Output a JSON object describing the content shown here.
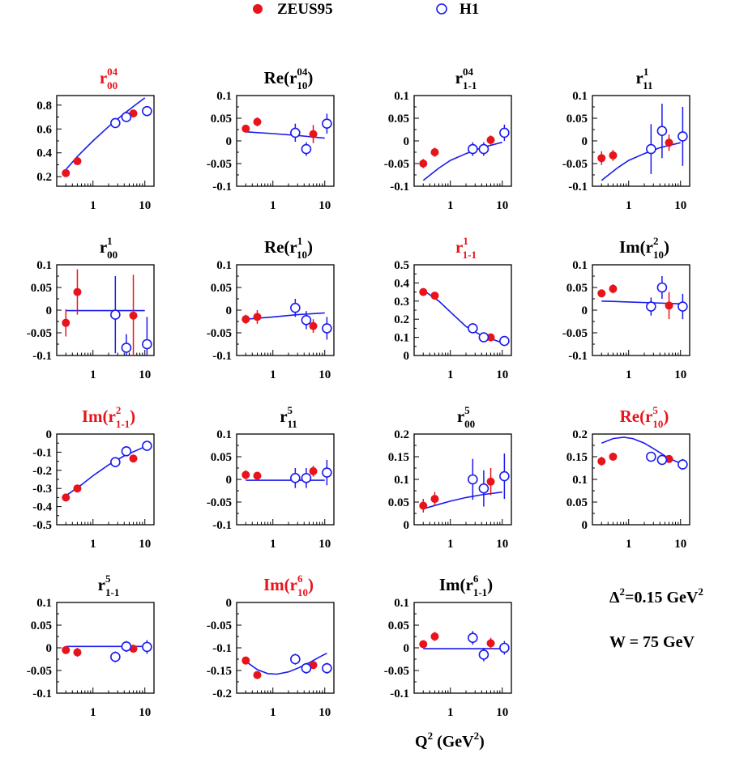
{
  "legend": [
    {
      "name": "ZEUS95",
      "marker": "filled-circle",
      "color": "#e8141c"
    },
    {
      "name": "H1",
      "marker": "open-circle",
      "color": "#1a1aee"
    }
  ],
  "annotations": {
    "delta_sq": {
      "base": "Δ",
      "sup": "2",
      "rest": "=0.15 GeV",
      "sup2": "2"
    },
    "w": "W = 75 GeV"
  },
  "x_axis_label": {
    "base": "Q",
    "sup": "2",
    "rest": " (GeV",
    "sup2": "2",
    "close": ")"
  },
  "colors": {
    "zeus": "#e8141c",
    "h1": "#1a1aee",
    "curve": "#1a1aee",
    "red_title": "#e8141c"
  },
  "x_ticks": [
    "1",
    "10"
  ],
  "chart_data": [
    {
      "type": "scatter",
      "title": {
        "pre": "r",
        "sup": "04",
        "sub": "00",
        "post": ""
      },
      "title_color": "red",
      "xlog": true,
      "xlim": [
        0.2,
        15
      ],
      "ylim": [
        0.12,
        0.88
      ],
      "yticks": [
        "0.2",
        "0.4",
        "0.6",
        "0.8"
      ],
      "zeus": [
        {
          "x": 0.3,
          "y": 0.23,
          "err": 0.0
        },
        {
          "x": 0.5,
          "y": 0.33,
          "err": 0.0
        },
        {
          "x": 6,
          "y": 0.73,
          "err": 0.0
        }
      ],
      "h1": [
        {
          "x": 2.7,
          "y": 0.65,
          "err": 0.02
        },
        {
          "x": 4.4,
          "y": 0.7,
          "err": 0.02
        },
        {
          "x": 11,
          "y": 0.75,
          "err": 0.03
        }
      ],
      "curve": {
        "x": [
          0.3,
          0.5,
          1,
          2,
          4,
          7,
          10
        ],
        "y": [
          0.26,
          0.37,
          0.5,
          0.62,
          0.73,
          0.81,
          0.86
        ]
      }
    },
    {
      "type": "scatter",
      "title": {
        "pre": "Re(r",
        "sup": "04",
        "sub": "10",
        "post": ")"
      },
      "title_color": "black",
      "xlog": true,
      "xlim": [
        0.2,
        15
      ],
      "ylim": [
        -0.1,
        0.1
      ],
      "yticks": [
        "0.1",
        "0.05",
        "0",
        "-0.05",
        "-0.1"
      ],
      "zeus": [
        {
          "x": 0.3,
          "y": 0.027,
          "err": 0.007
        },
        {
          "x": 0.5,
          "y": 0.042,
          "err": 0.01
        },
        {
          "x": 6,
          "y": 0.015,
          "err": 0.02
        }
      ],
      "h1": [
        {
          "x": 2.7,
          "y": 0.018,
          "err": 0.02
        },
        {
          "x": 4.4,
          "y": -0.018,
          "err": 0.015
        },
        {
          "x": 11,
          "y": 0.038,
          "err": 0.022
        }
      ],
      "curve": {
        "x": [
          0.3,
          1,
          3,
          10
        ],
        "y": [
          0.02,
          0.016,
          0.012,
          0.006
        ]
      }
    },
    {
      "type": "scatter",
      "title": {
        "pre": "r",
        "sup": "04",
        "sub": "1-1",
        "post": ""
      },
      "title_color": "black",
      "xlog": true,
      "xlim": [
        0.2,
        15
      ],
      "ylim": [
        -0.1,
        0.1
      ],
      "yticks": [
        "0.1",
        "0.05",
        "0",
        "-0.05",
        "-0.1"
      ],
      "zeus": [
        {
          "x": 0.3,
          "y": -0.05,
          "err": 0.01
        },
        {
          "x": 0.5,
          "y": -0.025,
          "err": 0.01
        },
        {
          "x": 6,
          "y": 0.002,
          "err": 0.01
        }
      ],
      "h1": [
        {
          "x": 2.7,
          "y": -0.018,
          "err": 0.015
        },
        {
          "x": 4.4,
          "y": -0.018,
          "err": 0.015
        },
        {
          "x": 11,
          "y": 0.018,
          "err": 0.018
        }
      ],
      "curve": {
        "x": [
          0.3,
          0.6,
          1,
          2,
          4,
          10
        ],
        "y": [
          -0.087,
          -0.06,
          -0.043,
          -0.028,
          -0.015,
          -0.003
        ]
      }
    },
    {
      "type": "scatter",
      "title": {
        "pre": "r",
        "sup": "1",
        "sub": "11",
        "post": ""
      },
      "title_color": "black",
      "xlog": true,
      "xlim": [
        0.2,
        15
      ],
      "ylim": [
        -0.1,
        0.1
      ],
      "yticks": [
        "0.1",
        "0.05",
        "0",
        "-0.05",
        "-0.1"
      ],
      "zeus": [
        {
          "x": 0.3,
          "y": -0.038,
          "err": 0.015
        },
        {
          "x": 0.5,
          "y": -0.032,
          "err": 0.012
        },
        {
          "x": 6,
          "y": -0.004,
          "err": 0.018
        }
      ],
      "h1": [
        {
          "x": 2.7,
          "y": -0.018,
          "err": 0.055
        },
        {
          "x": 4.4,
          "y": 0.022,
          "err": 0.06
        },
        {
          "x": 11,
          "y": 0.01,
          "err": 0.065
        }
      ],
      "curve": {
        "x": [
          0.3,
          0.6,
          1,
          2,
          4,
          10
        ],
        "y": [
          -0.087,
          -0.06,
          -0.043,
          -0.028,
          -0.015,
          -0.004
        ]
      }
    },
    {
      "type": "scatter",
      "title": {
        "pre": "r",
        "sup": "1",
        "sub": "00",
        "post": ""
      },
      "title_color": "black",
      "xlog": true,
      "xlim": [
        0.2,
        15
      ],
      "ylim": [
        -0.1,
        0.1
      ],
      "yticks": [
        "0.1",
        "0.05",
        "0",
        "-0.05",
        "-0.1"
      ],
      "zeus": [
        {
          "x": 0.3,
          "y": -0.028,
          "err": 0.03
        },
        {
          "x": 0.5,
          "y": 0.04,
          "err": 0.05
        },
        {
          "x": 6,
          "y": -0.012,
          "err": 0.09
        }
      ],
      "h1": [
        {
          "x": 2.7,
          "y": -0.01,
          "err": 0.085
        },
        {
          "x": 4.4,
          "y": -0.083,
          "err": 0.03
        },
        {
          "x": 11,
          "y": -0.075,
          "err": 0.06
        }
      ],
      "curve": {
        "x": [
          0.3,
          10
        ],
        "y": [
          -0.001,
          -0.001
        ]
      }
    },
    {
      "type": "scatter",
      "title": {
        "pre": "Re(r",
        "sup": "1",
        "sub": "10",
        "post": ")"
      },
      "title_color": "black",
      "xlog": true,
      "xlim": [
        0.2,
        15
      ],
      "ylim": [
        -0.1,
        0.1
      ],
      "yticks": [
        "0.1",
        "0.05",
        "0",
        "-0.05",
        "-0.1"
      ],
      "zeus": [
        {
          "x": 0.3,
          "y": -0.02,
          "err": 0.01
        },
        {
          "x": 0.5,
          "y": -0.015,
          "err": 0.015
        },
        {
          "x": 6,
          "y": -0.035,
          "err": 0.015
        }
      ],
      "h1": [
        {
          "x": 2.7,
          "y": 0.005,
          "err": 0.02
        },
        {
          "x": 4.4,
          "y": -0.022,
          "err": 0.02
        },
        {
          "x": 11,
          "y": -0.04,
          "err": 0.025
        }
      ],
      "curve": {
        "x": [
          0.3,
          1,
          3,
          10
        ],
        "y": [
          -0.02,
          -0.015,
          -0.01,
          -0.006
        ]
      }
    },
    {
      "type": "scatter",
      "title": {
        "pre": "r",
        "sup": "1",
        "sub": "1-1",
        "post": ""
      },
      "title_color": "red",
      "xlog": true,
      "xlim": [
        0.2,
        15
      ],
      "ylim": [
        0,
        0.5
      ],
      "yticks": [
        "0.5",
        "0.4",
        "0.3",
        "0.2",
        "0.1",
        "0"
      ],
      "zeus": [
        {
          "x": 0.3,
          "y": 0.35,
          "err": 0.0
        },
        {
          "x": 0.5,
          "y": 0.33,
          "err": 0.0
        },
        {
          "x": 6,
          "y": 0.1,
          "err": 0.0
        }
      ],
      "h1": [
        {
          "x": 2.7,
          "y": 0.15,
          "err": 0.02
        },
        {
          "x": 4.4,
          "y": 0.1,
          "err": 0.02
        },
        {
          "x": 11,
          "y": 0.08,
          "err": 0.02
        }
      ],
      "curve": {
        "x": [
          0.3,
          0.6,
          1,
          2,
          4,
          10
        ],
        "y": [
          0.36,
          0.3,
          0.24,
          0.16,
          0.11,
          0.07
        ]
      }
    },
    {
      "type": "scatter",
      "title": {
        "pre": "Im(r",
        "sup": "2",
        "sub": "10",
        "post": ")"
      },
      "title_color": "black",
      "xlog": true,
      "xlim": [
        0.2,
        15
      ],
      "ylim": [
        -0.1,
        0.1
      ],
      "yticks": [
        "0.1",
        "0.05",
        "0",
        "-0.05",
        "-0.1"
      ],
      "zeus": [
        {
          "x": 0.3,
          "y": 0.037,
          "err": 0.007
        },
        {
          "x": 0.5,
          "y": 0.047,
          "err": 0.01
        },
        {
          "x": 6,
          "y": 0.01,
          "err": 0.03
        }
      ],
      "h1": [
        {
          "x": 2.7,
          "y": 0.008,
          "err": 0.02
        },
        {
          "x": 4.4,
          "y": 0.05,
          "err": 0.025
        },
        {
          "x": 11,
          "y": 0.008,
          "err": 0.028
        }
      ],
      "curve": {
        "x": [
          0.3,
          1,
          3,
          10
        ],
        "y": [
          0.02,
          0.018,
          0.016,
          0.014
        ]
      }
    },
    {
      "type": "scatter",
      "title": {
        "pre": "Im(r",
        "sup": "2",
        "sub": "1-1",
        "post": ")"
      },
      "title_color": "red",
      "xlog": true,
      "xlim": [
        0.2,
        15
      ],
      "ylim": [
        -0.5,
        0
      ],
      "yticks": [
        "0",
        "-0.1",
        "-0.2",
        "-0.3",
        "-0.4",
        "-0.5"
      ],
      "zeus": [
        {
          "x": 0.3,
          "y": -0.35,
          "err": 0.0
        },
        {
          "x": 0.5,
          "y": -0.3,
          "err": 0.02
        },
        {
          "x": 6,
          "y": -0.135,
          "err": 0.02
        }
      ],
      "h1": [
        {
          "x": 2.7,
          "y": -0.155,
          "err": 0.02
        },
        {
          "x": 4.4,
          "y": -0.095,
          "err": 0.02
        },
        {
          "x": 11,
          "y": -0.065,
          "err": 0.02
        }
      ],
      "curve": {
        "x": [
          0.3,
          0.6,
          1,
          2,
          4,
          10
        ],
        "y": [
          -0.34,
          -0.28,
          -0.23,
          -0.17,
          -0.12,
          -0.07
        ]
      }
    },
    {
      "type": "scatter",
      "title": {
        "pre": "r",
        "sup": "5",
        "sub": "11",
        "post": ""
      },
      "title_color": "black",
      "xlog": true,
      "xlim": [
        0.2,
        15
      ],
      "ylim": [
        -0.1,
        0.1
      ],
      "yticks": [
        "0.1",
        "0.05",
        "0",
        "-0.05",
        "-0.1"
      ],
      "zeus": [
        {
          "x": 0.3,
          "y": 0.01,
          "err": 0.01
        },
        {
          "x": 0.5,
          "y": 0.008,
          "err": 0.005
        },
        {
          "x": 6,
          "y": 0.018,
          "err": 0.012
        }
      ],
      "h1": [
        {
          "x": 2.7,
          "y": 0.003,
          "err": 0.022
        },
        {
          "x": 4.4,
          "y": 0.003,
          "err": 0.022
        },
        {
          "x": 11,
          "y": 0.015,
          "err": 0.028
        }
      ],
      "curve": {
        "x": [
          0.3,
          10
        ],
        "y": [
          -0.002,
          -0.002
        ]
      }
    },
    {
      "type": "scatter",
      "title": {
        "pre": "r",
        "sup": "5",
        "sub": "00",
        "post": ""
      },
      "title_color": "black",
      "xlog": true,
      "xlim": [
        0.2,
        15
      ],
      "ylim": [
        0,
        0.2
      ],
      "yticks": [
        "0.2",
        "0.15",
        "0.1",
        "0.05",
        "0"
      ],
      "zeus": [
        {
          "x": 0.3,
          "y": 0.042,
          "err": 0.015
        },
        {
          "x": 0.5,
          "y": 0.057,
          "err": 0.015
        },
        {
          "x": 6,
          "y": 0.095,
          "err": 0.03
        }
      ],
      "h1": [
        {
          "x": 2.7,
          "y": 0.1,
          "err": 0.045
        },
        {
          "x": 4.4,
          "y": 0.08,
          "err": 0.04
        },
        {
          "x": 11,
          "y": 0.107,
          "err": 0.05
        }
      ],
      "curve": {
        "x": [
          0.3,
          0.6,
          1,
          2,
          4,
          10
        ],
        "y": [
          0.035,
          0.045,
          0.052,
          0.06,
          0.066,
          0.072
        ]
      }
    },
    {
      "type": "scatter",
      "title": {
        "pre": "Re(r",
        "sup": "5",
        "sub": "10",
        "post": ")"
      },
      "title_color": "red",
      "xlog": true,
      "xlim": [
        0.2,
        15
      ],
      "ylim": [
        0,
        0.2
      ],
      "yticks": [
        "0.2",
        "0.15",
        "0.1",
        "0.05",
        "0"
      ],
      "zeus": [
        {
          "x": 0.3,
          "y": 0.14,
          "err": 0.01
        },
        {
          "x": 0.5,
          "y": 0.15,
          "err": 0.005
        },
        {
          "x": 6,
          "y": 0.145,
          "err": 0.008
        }
      ],
      "h1": [
        {
          "x": 2.7,
          "y": 0.15,
          "err": 0.008
        },
        {
          "x": 4.4,
          "y": 0.143,
          "err": 0.008
        },
        {
          "x": 11,
          "y": 0.133,
          "err": 0.012
        }
      ],
      "curve": {
        "x": [
          0.3,
          0.5,
          0.8,
          1.2,
          2,
          3,
          5,
          8,
          11
        ],
        "y": [
          0.18,
          0.19,
          0.193,
          0.19,
          0.18,
          0.168,
          0.152,
          0.14,
          0.135
        ]
      }
    },
    {
      "type": "scatter",
      "title": {
        "pre": "r",
        "sup": "5",
        "sub": "1-1",
        "post": ""
      },
      "title_color": "black",
      "xlog": true,
      "xlim": [
        0.2,
        15
      ],
      "ylim": [
        -0.1,
        0.1
      ],
      "yticks": [
        "0.1",
        "0.05",
        "0",
        "-0.05",
        "-0.1"
      ],
      "zeus": [
        {
          "x": 0.3,
          "y": -0.005,
          "err": 0.005
        },
        {
          "x": 0.5,
          "y": -0.01,
          "err": 0.01
        },
        {
          "x": 6,
          "y": -0.002,
          "err": 0.005
        }
      ],
      "h1": [
        {
          "x": 2.7,
          "y": -0.02,
          "err": 0.012
        },
        {
          "x": 4.4,
          "y": 0.003,
          "err": 0.012
        },
        {
          "x": 11,
          "y": 0.002,
          "err": 0.015
        }
      ],
      "curve": {
        "x": [
          0.3,
          10
        ],
        "y": [
          0.003,
          0.003
        ]
      }
    },
    {
      "type": "scatter",
      "title": {
        "pre": "Im(r",
        "sup": "6",
        "sub": "10",
        "post": ")"
      },
      "title_color": "red",
      "xlog": true,
      "xlim": [
        0.2,
        15
      ],
      "ylim": [
        -0.2,
        0
      ],
      "yticks": [
        "0",
        "-0.05",
        "-0.1",
        "-0.15",
        "-0.2"
      ],
      "zeus": [
        {
          "x": 0.3,
          "y": -0.128,
          "err": 0.005
        },
        {
          "x": 0.5,
          "y": -0.16,
          "err": 0.005
        },
        {
          "x": 6,
          "y": -0.138,
          "err": 0.008
        }
      ],
      "h1": [
        {
          "x": 2.7,
          "y": -0.125,
          "err": 0.012
        },
        {
          "x": 4.4,
          "y": -0.145,
          "err": 0.012
        },
        {
          "x": 11,
          "y": -0.145,
          "err": 0.012
        }
      ],
      "curve": {
        "x": [
          0.3,
          0.5,
          0.8,
          1.2,
          2,
          3,
          5,
          8,
          11
        ],
        "y": [
          -0.13,
          -0.148,
          -0.157,
          -0.158,
          -0.153,
          -0.145,
          -0.133,
          -0.12,
          -0.112
        ]
      }
    },
    {
      "type": "scatter",
      "title": {
        "pre": "Im(r",
        "sup": "6",
        "sub": "1-1",
        "post": ")"
      },
      "title_color": "black",
      "xlog": true,
      "xlim": [
        0.2,
        15
      ],
      "ylim": [
        -0.1,
        0.1
      ],
      "yticks": [
        "0.1",
        "0.05",
        "0",
        "-0.05",
        "-0.1"
      ],
      "zeus": [
        {
          "x": 0.3,
          "y": 0.008,
          "err": 0.005
        },
        {
          "x": 0.5,
          "y": 0.025,
          "err": 0.01
        },
        {
          "x": 6,
          "y": 0.01,
          "err": 0.012
        }
      ],
      "h1": [
        {
          "x": 2.7,
          "y": 0.022,
          "err": 0.015
        },
        {
          "x": 4.4,
          "y": -0.015,
          "err": 0.015
        },
        {
          "x": 11,
          "y": 0.0,
          "err": 0.015
        }
      ],
      "curve": {
        "x": [
          0.3,
          10
        ],
        "y": [
          -0.002,
          -0.002
        ]
      }
    }
  ]
}
